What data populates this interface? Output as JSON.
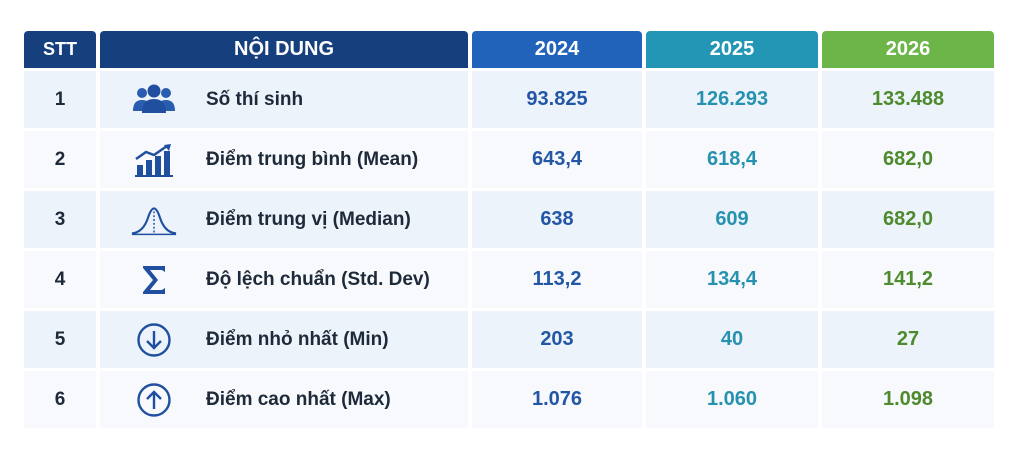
{
  "header": {
    "stt": "STT",
    "content": "NỘI DUNG",
    "y2024": "2024",
    "y2025": "2025",
    "y2026": "2026"
  },
  "colors": {
    "navy": "#163f7e",
    "blue": "#2162bb",
    "teal": "#2396b6",
    "green": "#6cb549"
  },
  "rows": [
    {
      "stt": "1",
      "icon": "users-icon",
      "label": "Số thí sinh",
      "v2024": "93.825",
      "v2025": "126.293",
      "v2026": "133.488"
    },
    {
      "stt": "2",
      "icon": "bar-chart-trend-icon",
      "label": "Điểm trung bình (Mean)",
      "v2024": "643,4",
      "v2025": "618,4",
      "v2026": "682,0"
    },
    {
      "stt": "3",
      "icon": "bell-curve-icon",
      "label": "Điểm trung vị (Median)",
      "v2024": "638",
      "v2025": "609",
      "v2026": "682,0"
    },
    {
      "stt": "4",
      "icon": "sigma-icon",
      "label": "Độ lệch chuẩn (Std. Dev)",
      "v2024": "113,2",
      "v2025": "134,4",
      "v2026": "141,2"
    },
    {
      "stt": "5",
      "icon": "arrow-down-circle-icon",
      "label": "Điểm nhỏ nhất (Min)",
      "v2024": "203",
      "v2025": "40",
      "v2026": "27"
    },
    {
      "stt": "6",
      "icon": "arrow-up-circle-icon",
      "label": "Điểm cao nhất (Max)",
      "v2024": "1.076",
      "v2025": "1.060",
      "v2026": "1.098"
    }
  ]
}
